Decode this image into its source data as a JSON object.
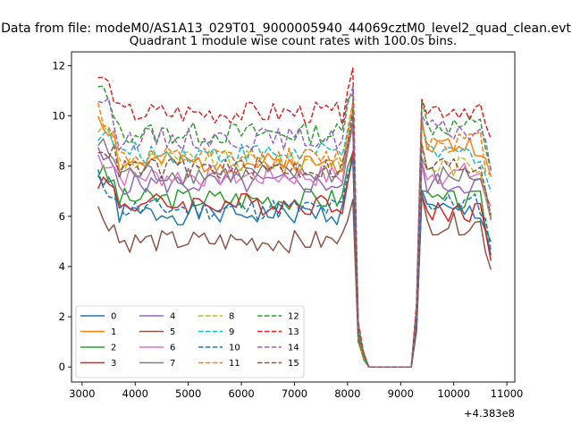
{
  "figure": {
    "suptitle": "Data from file: modeM0/AS1A13_029T01_9000005940_44069cztM0_level2_quad_clean.evt",
    "background": "#ffffff"
  },
  "chart_data": {
    "type": "line",
    "title": "Quadrant 1 module wise count rates with 100.0s bins.",
    "xlabel": "",
    "ylabel": "",
    "x_offset_label": "+4.383e8",
    "xlim": [
      2800,
      11150
    ],
    "ylim": [
      -0.6,
      12.55
    ],
    "xticks": [
      3000,
      4000,
      5000,
      6000,
      7000,
      8000,
      9000,
      10000,
      11000
    ],
    "xtick_labels": [
      "3000",
      "4000",
      "5000",
      "6000",
      "7000",
      "8000",
      "9000",
      "10000",
      "11000"
    ],
    "yticks": [
      0,
      2,
      4,
      6,
      8,
      10,
      12
    ],
    "ytick_labels": [
      "0",
      "2",
      "4",
      "6",
      "8",
      "10",
      "12"
    ],
    "grid": false,
    "legend_placement": "lower-left",
    "legend_columns": 4,
    "bin_start": 3300,
    "bin_width": 100,
    "series": [
      {
        "name": "0",
        "color": "#1f77b4",
        "dash": "solid",
        "first_level": 7.6,
        "level": 6.1,
        "second_level": 6.2,
        "seed": 1
      },
      {
        "name": "1",
        "color": "#ff7f0e",
        "dash": "solid",
        "first_level": 10.1,
        "level": 8.1,
        "second_level": 8.8,
        "seed": 2
      },
      {
        "name": "2",
        "color": "#2ca02c",
        "dash": "solid",
        "first_level": 7.8,
        "level": 6.7,
        "second_level": 6.6,
        "seed": 3
      },
      {
        "name": "3",
        "color": "#d62728",
        "dash": "solid",
        "first_level": 7.5,
        "level": 6.5,
        "second_level": 6.2,
        "seed": 4
      },
      {
        "name": "4",
        "color": "#9467bd",
        "dash": "solid",
        "first_level": 8.4,
        "level": 7.3,
        "second_level": 7.3,
        "seed": 5
      },
      {
        "name": "5",
        "color": "#8c564b",
        "dash": "solid",
        "first_level": 6.2,
        "level": 5.0,
        "second_level": 5.7,
        "seed": 6
      },
      {
        "name": "6",
        "color": "#e377c2",
        "dash": "solid",
        "first_level": 8.4,
        "level": 7.6,
        "second_level": 7.7,
        "seed": 7
      },
      {
        "name": "7",
        "color": "#7f7f7f",
        "dash": "solid",
        "first_level": 8.9,
        "level": 7.7,
        "second_level": 7.6,
        "seed": 8
      },
      {
        "name": "8",
        "color": "#bcbd22",
        "dash": "dashed",
        "first_level": 9.6,
        "level": 8.2,
        "second_level": 8.0,
        "seed": 9
      },
      {
        "name": "9",
        "color": "#17becf",
        "dash": "dashed",
        "first_level": 9.4,
        "level": 8.5,
        "second_level": 8.5,
        "seed": 10
      },
      {
        "name": "10",
        "color": "#1f77b4",
        "dash": "dashed",
        "first_level": 7.5,
        "level": 6.3,
        "second_level": 6.5,
        "seed": 11
      },
      {
        "name": "11",
        "color": "#ff7f0e",
        "dash": "dashed",
        "first_level": 10.3,
        "level": 8.3,
        "second_level": 9.0,
        "seed": 12
      },
      {
        "name": "12",
        "color": "#2ca02c",
        "dash": "dashed",
        "first_level": 11.1,
        "level": 9.3,
        "second_level": 9.6,
        "seed": 13
      },
      {
        "name": "13",
        "color": "#d62728",
        "dash": "dashed",
        "first_level": 11.6,
        "level": 10.1,
        "second_level": 10.3,
        "seed": 14
      },
      {
        "name": "14",
        "color": "#9467bd",
        "dash": "dashed",
        "first_level": 10.8,
        "level": 9.1,
        "second_level": 9.4,
        "seed": 15
      },
      {
        "name": "15",
        "color": "#8c564b",
        "dash": "dashed",
        "first_level": 8.9,
        "level": 7.9,
        "second_level": 8.0,
        "seed": 16
      }
    ]
  }
}
